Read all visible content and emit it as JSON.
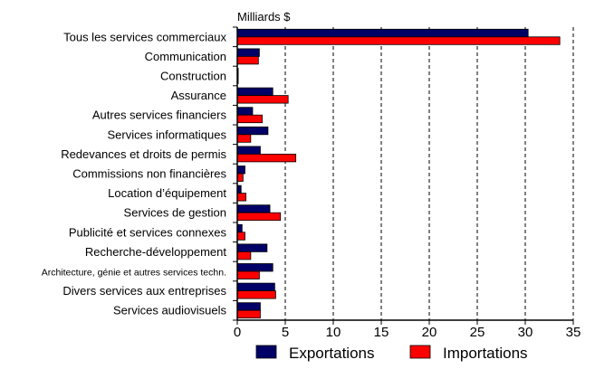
{
  "colors": {
    "exportations": "#000066",
    "importations": "#ff0000",
    "axis": "#000000",
    "grid": "#000000"
  },
  "chart_data": {
    "type": "bar",
    "orientation": "horizontal",
    "title": "",
    "unit_label": "Milliards $",
    "xlabel": "",
    "ylabel": "",
    "xlim": [
      0,
      35
    ],
    "x_ticks": [
      0,
      5,
      10,
      15,
      20,
      25,
      30,
      35
    ],
    "grid": "vertical dashed",
    "legend_position": "bottom",
    "categories": [
      "Tous les services commerciaux",
      "Communication",
      "Construction",
      "Assurance",
      "Autres services financiers",
      "Services informatiques",
      "Redevances et droits de permis",
      "Commissions non financières",
      "Location d’équipement",
      "Services de gestion",
      "Publicité et services connexes",
      "Recherche-développement",
      "Architecture, génie et autres services techn.",
      "Divers services aux entreprises",
      "Services audiovisuels"
    ],
    "series": [
      {
        "name": "Exportations",
        "color": "#000066",
        "values": [
          30.3,
          2.3,
          0.1,
          3.7,
          1.6,
          3.2,
          2.4,
          0.8,
          0.4,
          3.4,
          0.5,
          3.1,
          3.7,
          3.9,
          2.4
        ]
      },
      {
        "name": "Importations",
        "color": "#ff0000",
        "values": [
          33.6,
          2.2,
          0.1,
          5.3,
          2.6,
          1.4,
          6.1,
          0.6,
          0.9,
          4.5,
          0.8,
          1.4,
          2.3,
          4.0,
          2.4
        ]
      }
    ]
  }
}
